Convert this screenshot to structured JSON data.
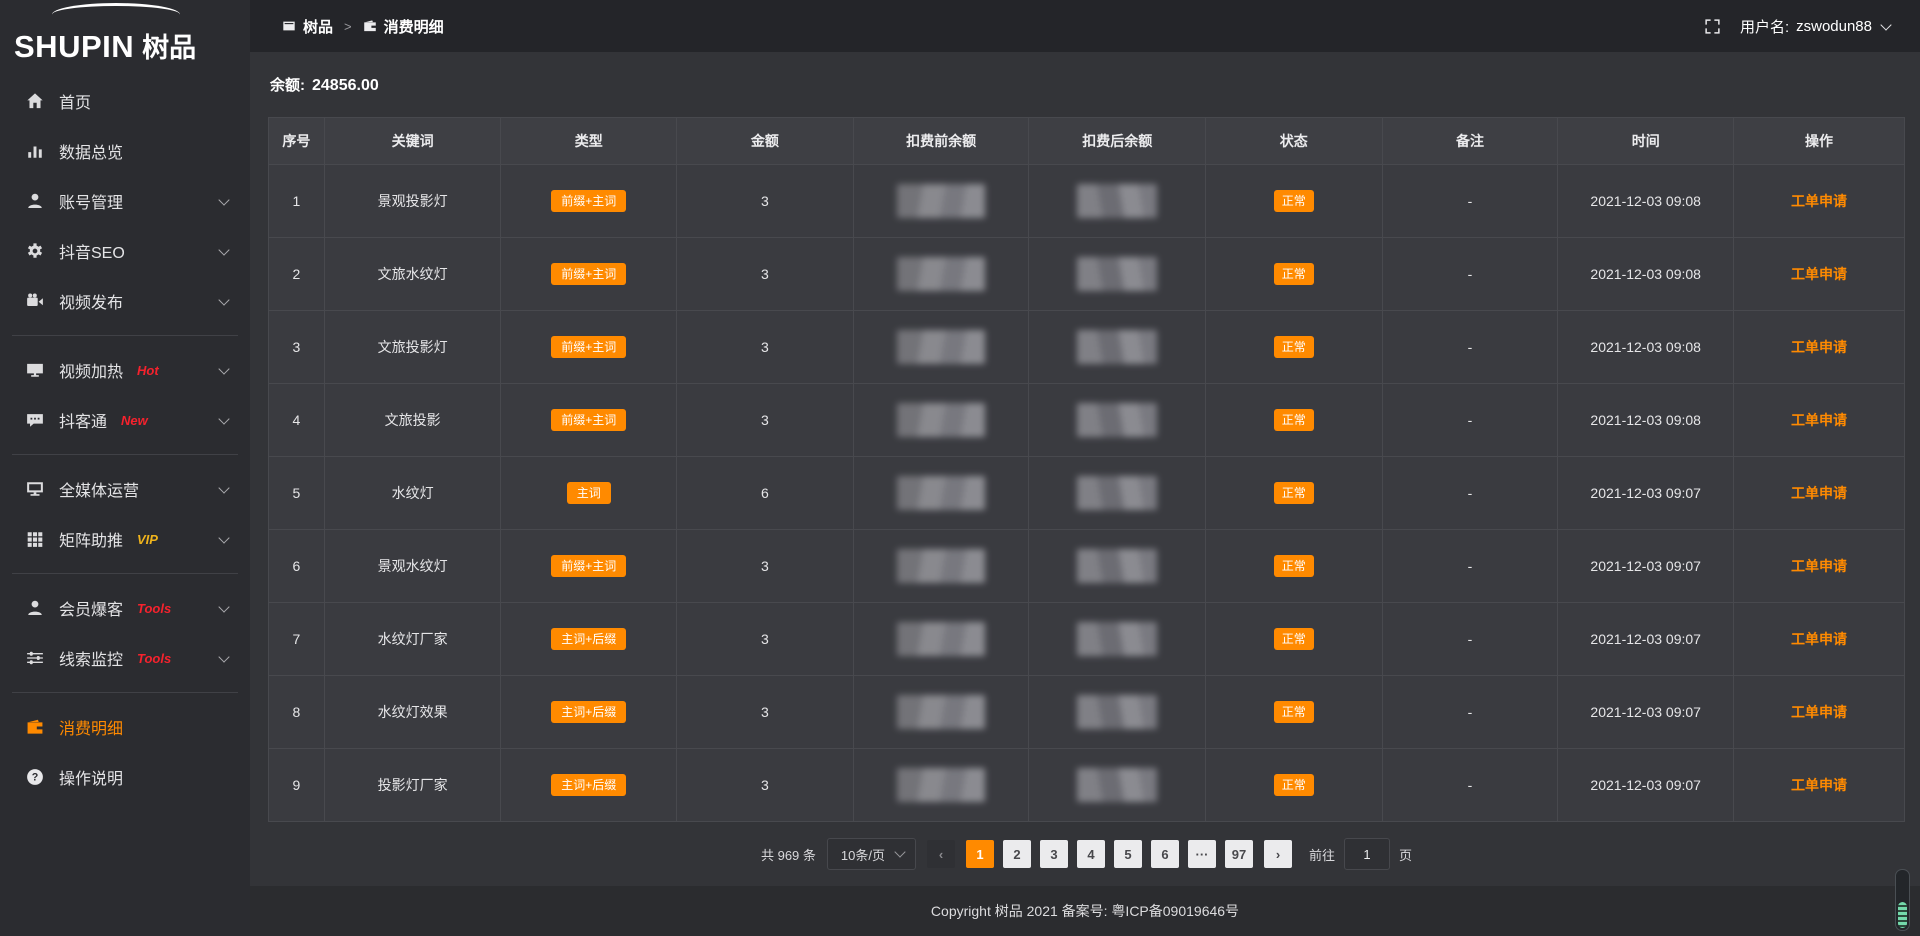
{
  "brand": {
    "logo_text": "SHUPIN",
    "logo_cn": "树品"
  },
  "topbar": {
    "breadcrumb": [
      {
        "label": "树品",
        "icon": "app"
      },
      {
        "label": "消费明细",
        "icon": "wallet"
      }
    ],
    "separator": ">",
    "username_label": "用户名:",
    "username": "zswodun88"
  },
  "sidebar": {
    "items": [
      {
        "label": "首页",
        "icon": "home"
      },
      {
        "label": "数据总览",
        "icon": "chart"
      },
      {
        "label": "账号管理",
        "icon": "user",
        "chevron": true
      },
      {
        "label": "抖音SEO",
        "icon": "gear",
        "chevron": true
      },
      {
        "label": "视频发布",
        "icon": "video",
        "chevron": true
      },
      {
        "divider": true
      },
      {
        "label": "视频加热",
        "icon": "screen",
        "chevron": true,
        "badge": "Hot",
        "badge_color": "#f5222d"
      },
      {
        "label": "抖客通",
        "icon": "chat",
        "chevron": true,
        "badge": "New",
        "badge_color": "#f5222d"
      },
      {
        "divider": true
      },
      {
        "label": "全媒体运营",
        "icon": "monitor",
        "chevron": true
      },
      {
        "label": "矩阵助推",
        "icon": "grid",
        "chevron": true,
        "badge": "VIP",
        "badge_color": "#f0b41c"
      },
      {
        "divider": true
      },
      {
        "label": "会员爆客",
        "icon": "user",
        "chevron": true,
        "badge": "Tools",
        "badge_color": "#f5222d"
      },
      {
        "label": "线索监控",
        "icon": "sliders",
        "chevron": true,
        "badge": "Tools",
        "badge_color": "#f5222d"
      },
      {
        "divider": true
      },
      {
        "label": "消费明细",
        "icon": "wallet",
        "active": true
      },
      {
        "label": "操作说明",
        "icon": "question"
      }
    ]
  },
  "balance": {
    "label": "余额:",
    "value": "24856.00"
  },
  "table": {
    "columns": [
      "序号",
      "关键词",
      "类型",
      "金额",
      "扣费前余额",
      "扣费后余额",
      "状态",
      "备注",
      "时间",
      "操作"
    ],
    "censored_columns": [
      "扣费前余额",
      "扣费后余额"
    ],
    "action_label": "工单申请",
    "rows": [
      {
        "index": "1",
        "keyword": "景观投影灯",
        "type": "前缀+主词",
        "amount": "3",
        "status": "正常",
        "remark": "-",
        "time": "2021-12-03 09:08"
      },
      {
        "index": "2",
        "keyword": "文旅水纹灯",
        "type": "前缀+主词",
        "amount": "3",
        "status": "正常",
        "remark": "-",
        "time": "2021-12-03 09:08"
      },
      {
        "index": "3",
        "keyword": "文旅投影灯",
        "type": "前缀+主词",
        "amount": "3",
        "status": "正常",
        "remark": "-",
        "time": "2021-12-03 09:08"
      },
      {
        "index": "4",
        "keyword": "文旅投影",
        "type": "前缀+主词",
        "amount": "3",
        "status": "正常",
        "remark": "-",
        "time": "2021-12-03 09:08"
      },
      {
        "index": "5",
        "keyword": "水纹灯",
        "type": "主词",
        "amount": "6",
        "status": "正常",
        "remark": "-",
        "time": "2021-12-03 09:07"
      },
      {
        "index": "6",
        "keyword": "景观水纹灯",
        "type": "前缀+主词",
        "amount": "3",
        "status": "正常",
        "remark": "-",
        "time": "2021-12-03 09:07"
      },
      {
        "index": "7",
        "keyword": "水纹灯厂家",
        "type": "主词+后缀",
        "amount": "3",
        "status": "正常",
        "remark": "-",
        "time": "2021-12-03 09:07"
      },
      {
        "index": "8",
        "keyword": "水纹灯效果",
        "type": "主词+后缀",
        "amount": "3",
        "status": "正常",
        "remark": "-",
        "time": "2021-12-03 09:07"
      },
      {
        "index": "9",
        "keyword": "投影灯厂家",
        "type": "主词+后缀",
        "amount": "3",
        "status": "正常",
        "remark": "-",
        "time": "2021-12-03 09:07"
      }
    ]
  },
  "pagination": {
    "total": "共 969 条",
    "per_page": "10条/页",
    "prev": "‹",
    "next": "›",
    "pages": [
      "1",
      "2",
      "3",
      "4",
      "5",
      "6",
      "···",
      "97"
    ],
    "active_page": "1",
    "jump_label": "前往",
    "jump_value": "1",
    "jump_unit": "页"
  },
  "footer": {
    "copyright": "Copyright 树品 2021 备案号: 粤ICP备09019646号"
  },
  "colors": {
    "accent": "#ff8a00",
    "hot_badge": "#f5222d",
    "vip_badge": "#f0b41c"
  }
}
